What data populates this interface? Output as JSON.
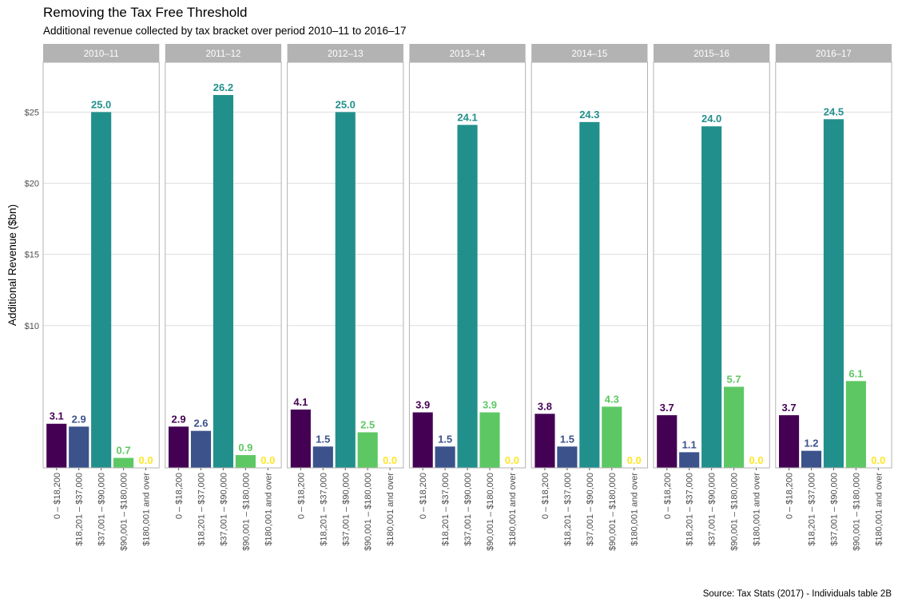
{
  "chart_data": {
    "type": "bar",
    "title": "Removing the Tax Free Threshold",
    "subtitle": "Additional revenue collected by tax bracket over period 2010–11 to 2016–17",
    "caption": "Source: Tax Stats (2017) - Individuals table 2B",
    "xlabel": "",
    "ylabel": "Additional Revenue ($bn)",
    "ylim": [
      0,
      28.5
    ],
    "y_ticks": [
      10,
      15,
      20,
      25
    ],
    "y_tick_labels": [
      "$10",
      "$15",
      "$20",
      "$25"
    ],
    "grid": true,
    "legend": "none",
    "categories": [
      "0 – $18,200",
      "$18,201 – $37,000",
      "$37,001 – $90,000",
      "$90,001 – $180,000",
      "$180,001 and over"
    ],
    "colors": [
      "#440154",
      "#3b528b",
      "#21908c",
      "#5dc863",
      "#fde725"
    ],
    "facets": [
      {
        "label": "2010–11",
        "values": [
          3.1,
          2.9,
          25.0,
          0.7,
          0.0
        ]
      },
      {
        "label": "2011–12",
        "values": [
          2.9,
          2.6,
          26.2,
          0.9,
          0.0
        ]
      },
      {
        "label": "2012–13",
        "values": [
          4.1,
          1.5,
          25.0,
          2.5,
          0.0
        ]
      },
      {
        "label": "2013–14",
        "values": [
          3.9,
          1.5,
          24.1,
          3.9,
          0.0
        ]
      },
      {
        "label": "2014–15",
        "values": [
          3.8,
          1.5,
          24.3,
          4.3,
          0.0
        ]
      },
      {
        "label": "2015–16",
        "values": [
          3.7,
          1.1,
          24.0,
          5.7,
          0.0
        ]
      },
      {
        "label": "2016–17",
        "values": [
          3.7,
          1.2,
          24.5,
          6.1,
          0.0
        ]
      }
    ]
  }
}
